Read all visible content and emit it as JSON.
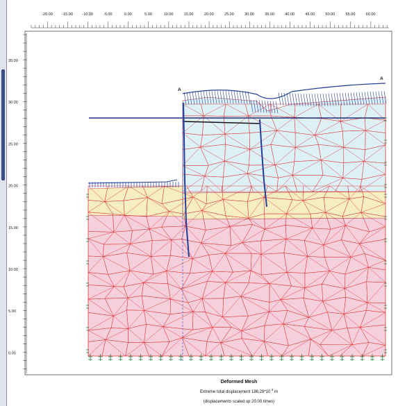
{
  "window": {
    "accent_blue": "#1f3f9a",
    "mesh_red": "#e03030",
    "clay_pink": "#f6cfdc",
    "sand_yellow": "#f6eec0",
    "fill_cyan": "#dcf0f5"
  },
  "top_ruler": {
    "labels": [
      "-20.00",
      "-15.00",
      "-10.00",
      "-5.00",
      "0.00",
      "5.00",
      "10.00",
      "15.00",
      "20.00",
      "25.00",
      "30.00",
      "35.00",
      "40.00",
      "45.00",
      "50.00",
      "55.00",
      "60.00"
    ]
  },
  "left_ruler": {
    "labels": [
      "35.00",
      "30.00",
      "25.00",
      "20.00",
      "15.00",
      "10.00",
      "5.00",
      "0.00"
    ]
  },
  "model": {
    "point_label_left": "A",
    "point_label_right": "A"
  },
  "caption": {
    "title": "Deformed Mesh",
    "line1_prefix": "Extreme total displacement 186,28*10",
    "line1_exponent": "-3",
    "line1_suffix": " m",
    "line2": "(displacements scaled up 20.00 times)"
  }
}
